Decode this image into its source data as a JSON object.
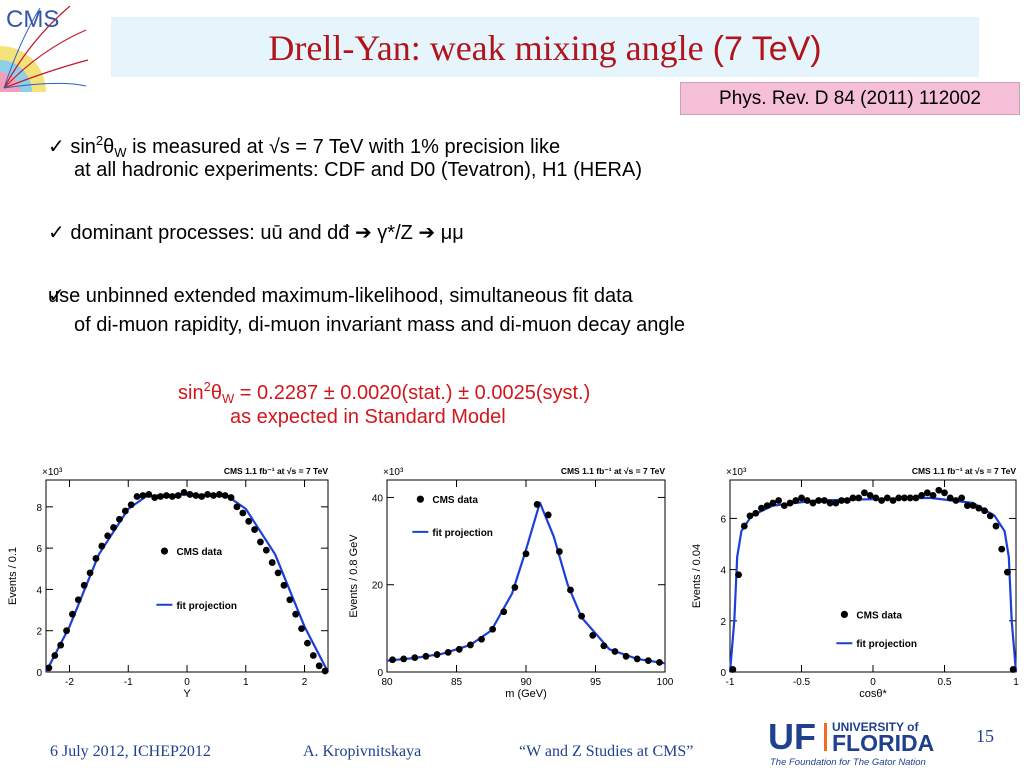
{
  "logo": {
    "text": "CMS"
  },
  "title": {
    "main": "Drell-Yan: weak mixing angle",
    "energy": "(7 TeV)"
  },
  "reference": "Phys. Rev. D 84 (2011) 112002",
  "bullets": [
    {
      "check": "✓",
      "pre": " sin",
      "sup": "2",
      "theta": "θ",
      "sub": "W",
      "post": " is measured at √s = 7 TeV with 1% precision like",
      "line2": "at all hadronic experiments: CDF and D0 (Tevatron), H1 (HERA)"
    },
    {
      "check": "✓",
      "text": " dominant processes: uū and dđ",
      "arrow": "➔",
      "mid": " γ*/Z ",
      "end": " μμ"
    },
    {
      "check": "✓",
      "line1": " use unbinned extended maximum-likelihood, simultaneous fit data",
      "line2": "of di-muon rapidity, di-muon invariant mass and di-muon decay angle"
    }
  ],
  "result": {
    "pre": "sin",
    "sup": "2",
    "theta": "θ",
    "sub": "W",
    "value": " = 0.2287 ± 0.0020(stat.) ± 0.0025(syst.)",
    "line2": "as expected in Standard Model"
  },
  "plots": [
    {
      "header": "CMS 1.1 fb⁻¹ at √s = 7 TeV",
      "multiplier": "×10³",
      "xlabel": "Y",
      "ylabel": "Events / 0.1",
      "xticks": [
        "-2",
        "-1",
        "0",
        "1",
        "2"
      ],
      "yticks": [
        "0",
        "2",
        "4",
        "6",
        "8"
      ],
      "legend": {
        "data": "CMS data",
        "fit": "fit projection"
      }
    },
    {
      "header": "CMS 1.1 fb⁻¹ at √s = 7 TeV",
      "multiplier": "×10³",
      "xlabel": "m (GeV)",
      "ylabel": "Events / 0.8 GeV",
      "xticks": [
        "80",
        "85",
        "90",
        "95",
        "100"
      ],
      "yticks": [
        "0",
        "20",
        "40"
      ],
      "legend": {
        "data": "CMS data",
        "fit": "fit projection"
      }
    },
    {
      "header": "CMS 1.1 fb⁻¹ at √s = 7 TeV",
      "multiplier": "×10³",
      "xlabel": "cosθ*",
      "ylabel": "Events / 0.04",
      "xticks": [
        "-1",
        "-0.5",
        "0",
        "0.5",
        "1"
      ],
      "yticks": [
        "0",
        "2",
        "4",
        "6"
      ],
      "legend": {
        "data": "CMS data",
        "fit": "fit projection"
      }
    }
  ],
  "chart_data": [
    {
      "type": "scatter",
      "xlabel": "Y",
      "ylabel": "Events / 0.1",
      "xlim": [
        -2.4,
        2.4
      ],
      "ylim": [
        0,
        9.3
      ],
      "series": [
        {
          "name": "CMS data",
          "x": [
            -2.35,
            -2.25,
            -2.15,
            -2.05,
            -1.95,
            -1.85,
            -1.75,
            -1.65,
            -1.55,
            -1.45,
            -1.35,
            -1.25,
            -1.15,
            -1.05,
            -0.95,
            -0.85,
            -0.75,
            -0.65,
            -0.55,
            -0.45,
            -0.35,
            -0.25,
            -0.15,
            -0.05,
            0.05,
            0.15,
            0.25,
            0.35,
            0.45,
            0.55,
            0.65,
            0.75,
            0.85,
            0.95,
            1.05,
            1.15,
            1.25,
            1.35,
            1.45,
            1.55,
            1.65,
            1.75,
            1.85,
            1.95,
            2.05,
            2.15,
            2.25,
            2.35
          ],
          "y": [
            0.2,
            0.8,
            1.3,
            2.0,
            2.8,
            3.5,
            4.2,
            4.8,
            5.5,
            6.1,
            6.6,
            7.0,
            7.4,
            7.8,
            8.1,
            8.5,
            8.55,
            8.6,
            8.45,
            8.5,
            8.55,
            8.5,
            8.55,
            8.7,
            8.6,
            8.55,
            8.5,
            8.6,
            8.55,
            8.6,
            8.55,
            8.45,
            8.0,
            7.7,
            7.3,
            6.9,
            6.3,
            5.9,
            5.3,
            4.8,
            4.2,
            3.5,
            2.8,
            2.1,
            1.4,
            0.8,
            0.3,
            0.05
          ]
        },
        {
          "name": "fit projection",
          "x": [
            -2.4,
            -2.0,
            -1.5,
            -1.0,
            -0.7,
            -0.5,
            0,
            0.5,
            0.7,
            1.0,
            1.5,
            2.0,
            2.4
          ],
          "y": [
            0,
            2.2,
            5.7,
            7.9,
            8.5,
            8.55,
            8.6,
            8.55,
            8.5,
            7.9,
            5.7,
            2.2,
            0
          ]
        }
      ]
    },
    {
      "type": "scatter",
      "xlabel": "m (GeV)",
      "ylabel": "Events / 0.8 GeV",
      "xlim": [
        80,
        100
      ],
      "ylim": [
        0,
        44
      ],
      "series": [
        {
          "name": "CMS data",
          "x": [
            80.4,
            81.2,
            82.0,
            82.8,
            83.6,
            84.4,
            85.2,
            86.0,
            86.8,
            87.6,
            88.4,
            89.2,
            90.0,
            90.8,
            91.6,
            92.4,
            93.2,
            94.0,
            94.8,
            95.6,
            96.4,
            97.2,
            98.0,
            98.8,
            99.6
          ],
          "y": [
            2.8,
            3.0,
            3.3,
            3.6,
            4.0,
            4.5,
            5.2,
            6.2,
            7.5,
            9.8,
            13.8,
            19.4,
            27.1,
            38.4,
            36.0,
            27.6,
            18.8,
            12.8,
            8.4,
            6.0,
            4.7,
            3.6,
            3.0,
            2.6,
            2.2
          ]
        },
        {
          "name": "fit projection",
          "x": [
            80,
            82,
            84,
            86,
            87.5,
            89,
            90,
            91,
            92,
            93,
            94,
            96,
            98,
            100
          ],
          "y": [
            2.6,
            3.2,
            4.2,
            6.2,
            9.5,
            18,
            28,
            38.8,
            31,
            20,
            12.5,
            5.2,
            3.0,
            2.0
          ]
        }
      ]
    },
    {
      "type": "scatter",
      "xlabel": "cosθ*",
      "ylabel": "Events / 0.04",
      "xlim": [
        -1,
        1
      ],
      "ylim": [
        0,
        7.5
      ],
      "series": [
        {
          "name": "CMS data",
          "x": [
            -0.98,
            -0.94,
            -0.9,
            -0.86,
            -0.82,
            -0.78,
            -0.74,
            -0.7,
            -0.66,
            -0.62,
            -0.58,
            -0.54,
            -0.5,
            -0.46,
            -0.42,
            -0.38,
            -0.34,
            -0.3,
            -0.26,
            -0.22,
            -0.18,
            -0.14,
            -0.1,
            -0.06,
            -0.02,
            0.02,
            0.06,
            0.1,
            0.14,
            0.18,
            0.22,
            0.26,
            0.3,
            0.34,
            0.38,
            0.42,
            0.46,
            0.5,
            0.54,
            0.58,
            0.62,
            0.66,
            0.7,
            0.74,
            0.78,
            0.82,
            0.86,
            0.9,
            0.94,
            0.98
          ],
          "y": [
            0.1,
            3.8,
            5.7,
            6.1,
            6.2,
            6.4,
            6.5,
            6.6,
            6.7,
            6.5,
            6.6,
            6.7,
            6.8,
            6.7,
            6.6,
            6.7,
            6.7,
            6.6,
            6.6,
            6.7,
            6.7,
            6.8,
            6.8,
            7.0,
            6.9,
            6.8,
            6.7,
            6.8,
            6.7,
            6.8,
            6.8,
            6.8,
            6.8,
            6.9,
            7.0,
            6.9,
            7.1,
            7.0,
            6.8,
            6.7,
            6.8,
            6.5,
            6.5,
            6.4,
            6.3,
            6.1,
            5.7,
            4.8,
            3.9,
            0.1
          ]
        },
        {
          "name": "fit projection",
          "x": [
            -1,
            -0.97,
            -0.95,
            -0.92,
            -0.85,
            -0.7,
            -0.4,
            0,
            0.4,
            0.7,
            0.85,
            0.92,
            0.95,
            0.97,
            1
          ],
          "y": [
            0,
            2.0,
            4.5,
            5.5,
            6.1,
            6.5,
            6.7,
            6.75,
            6.8,
            6.6,
            6.1,
            5.5,
            4.5,
            2.0,
            0
          ]
        }
      ]
    }
  ],
  "footer": {
    "date": "6 July 2012, ICHEP2012",
    "author": "A. Kropivnitskaya",
    "talk": "“W and Z Studies at CMS”",
    "page": "15",
    "uf": {
      "univ": "UNIVERSITY of",
      "name": "FLORIDA",
      "tag": "The Foundation for The Gator Nation",
      "mark": "UF"
    }
  },
  "colors": {
    "title": "#b0141c",
    "result": "#d2171c",
    "fit": "#1c3fd9",
    "footer": "#1f3f8f",
    "uf_orange": "#f26b21"
  }
}
